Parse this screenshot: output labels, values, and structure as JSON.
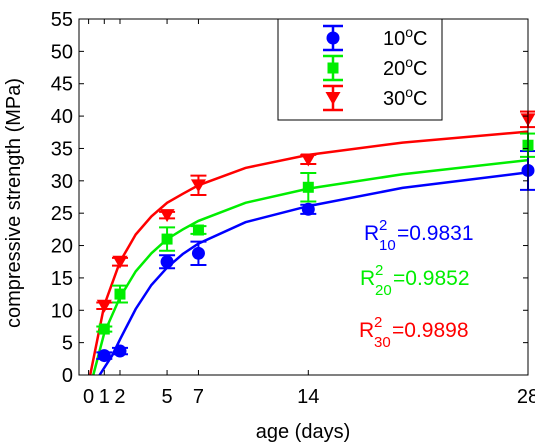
{
  "chart_data": {
    "type": "scatter",
    "xlabel": "age (days)",
    "ylabel": "compressive strength (MPa)",
    "xlim": [
      0,
      28
    ],
    "ylim": [
      0,
      55
    ],
    "x_ticks": [
      0,
      1,
      2,
      5,
      7,
      14,
      28
    ],
    "y_ticks": [
      0,
      5,
      10,
      15,
      20,
      25,
      30,
      35,
      40,
      45,
      50,
      55
    ],
    "grid": false,
    "legend_position": "top-center",
    "series": [
      {
        "name": "10oC",
        "legend_base": "10",
        "legend_sup": "o",
        "legend_suffix": "C",
        "color": "#0000ff",
        "marker": "circle",
        "points": [
          {
            "x": 1,
            "y": 3.0,
            "err": 0.5
          },
          {
            "x": 2,
            "y": 3.7,
            "err": 0.5
          },
          {
            "x": 5,
            "y": 17.5,
            "err": 1.0
          },
          {
            "x": 7,
            "y": 18.8,
            "err": 1.8
          },
          {
            "x": 14,
            "y": 25.6,
            "err": 0.7
          },
          {
            "x": 28,
            "y": 31.6,
            "err": 3.0
          }
        ],
        "fit": [
          [
            0.7,
            0
          ],
          [
            1.5,
            3.0
          ],
          [
            2,
            5.5
          ],
          [
            3,
            10.2
          ],
          [
            4,
            13.9
          ],
          [
            5,
            16.6
          ],
          [
            6,
            18.7
          ],
          [
            7,
            20.3
          ],
          [
            10,
            23.6
          ],
          [
            14,
            26.1
          ],
          [
            20,
            28.9
          ],
          [
            28,
            31.3
          ]
        ],
        "r2_label": "R",
        "r2_sup": "2",
        "r2_sub": "10",
        "r2_value": "=0.9831"
      },
      {
        "name": "20oC",
        "legend_base": "20",
        "legend_sup": "o",
        "legend_suffix": "C",
        "color": "#00ee00",
        "marker": "square",
        "points": [
          {
            "x": 1,
            "y": 7.1,
            "err": 0.4
          },
          {
            "x": 2,
            "y": 12.5,
            "err": 1.3
          },
          {
            "x": 5,
            "y": 21.0,
            "err": 1.8
          },
          {
            "x": 7,
            "y": 22.4,
            "err": 0.6
          },
          {
            "x": 14,
            "y": 29.0,
            "err": 2.2
          },
          {
            "x": 28,
            "y": 35.5,
            "err": 1.8
          }
        ],
        "fit": [
          [
            0.3,
            0
          ],
          [
            1,
            6.5
          ],
          [
            2,
            12.0
          ],
          [
            3,
            16.0
          ],
          [
            4,
            18.8
          ],
          [
            5,
            21.0
          ],
          [
            6,
            22.5
          ],
          [
            7,
            23.8
          ],
          [
            10,
            26.6
          ],
          [
            14,
            28.8
          ],
          [
            20,
            31.0
          ],
          [
            28,
            33.2
          ]
        ],
        "r2_label": "R",
        "r2_sup": "2",
        "r2_sub": "20",
        "r2_value": "=0.9852"
      },
      {
        "name": "30oC",
        "legend_base": "30",
        "legend_sup": "o",
        "legend_suffix": "C",
        "color": "#ff0000",
        "marker": "triangle-down",
        "points": [
          {
            "x": 1,
            "y": 10.7,
            "err": 0.5
          },
          {
            "x": 2,
            "y": 17.5,
            "err": 0.6
          },
          {
            "x": 5,
            "y": 24.7,
            "err": 0.5
          },
          {
            "x": 7,
            "y": 29.3,
            "err": 1.5
          },
          {
            "x": 14,
            "y": 33.3,
            "err": 0.7
          },
          {
            "x": 28,
            "y": 39.5,
            "err": 1.2
          }
        ],
        "fit": [
          [
            0.1,
            0
          ],
          [
            1,
            10.8
          ],
          [
            2,
            17.5
          ],
          [
            3,
            21.7
          ],
          [
            4,
            24.5
          ],
          [
            5,
            26.6
          ],
          [
            6,
            28.0
          ],
          [
            7,
            29.3
          ],
          [
            10,
            32.0
          ],
          [
            14,
            34.0
          ],
          [
            20,
            35.9
          ],
          [
            28,
            37.6
          ]
        ],
        "r2_label": "R",
        "r2_sup": "2",
        "r2_sub": "30",
        "r2_value": "=0.9898"
      }
    ]
  }
}
